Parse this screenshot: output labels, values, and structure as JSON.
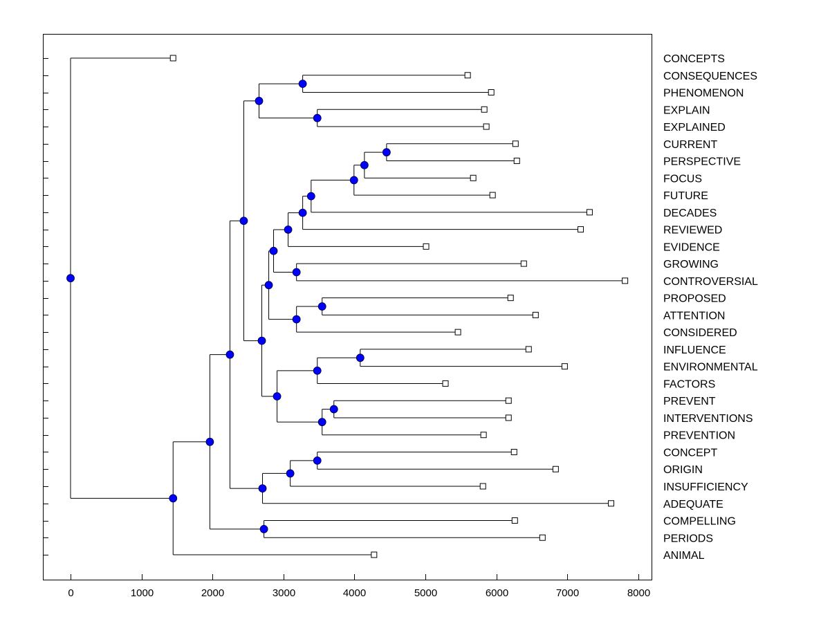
{
  "chart_data": {
    "type": "dendrogram",
    "title": "",
    "xlabel": "",
    "ylabel": "",
    "xlim": [
      -400,
      8200
    ],
    "xticks": [
      0,
      1000,
      2000,
      3000,
      4000,
      5000,
      6000,
      7000,
      8000
    ],
    "grid": false,
    "colors": {
      "node": "#0000ff",
      "line": "#000000",
      "leaf": "#ffffff"
    },
    "tree": {
      "h": 0,
      "children": [
        {
          "leaf": "CONCEPTS",
          "h": 1445
        },
        {
          "h": 1445,
          "children": [
            {
              "h": 1963,
              "children": [
                {
                  "h": 2246,
                  "children": [
                    {
                      "h": 2441,
                      "children": [
                        {
                          "h": 2656,
                          "children": [
                            {
                              "h": 3271,
                              "children": [
                                {
                                  "leaf": "CONSEQUENCES",
                                  "h": 5596
                                },
                                {
                                  "leaf": "PHENOMENON",
                                  "h": 5928
                                }
                              ]
                            },
                            {
                              "h": 3477,
                              "children": [
                                {
                                  "leaf": "EXPLAIN",
                                  "h": 5830
                                },
                                {
                                  "leaf": "EXPLAINED",
                                  "h": 5859
                                }
                              ]
                            }
                          ]
                        },
                        {
                          "h": 2695,
                          "children": [
                            {
                              "h": 2793,
                              "children": [
                                {
                                  "h": 2861,
                                  "children": [
                                    {
                                      "h": 3066,
                                      "children": [
                                        {
                                          "h": 3271,
                                          "children": [
                                            {
                                              "h": 3390,
                                              "children": [
                                                {
                                                  "h": 3994,
                                                  "children": [
                                                    {
                                                      "h": 4141,
                                                      "children": [
                                                        {
                                                          "h": 4453,
                                                          "children": [
                                                            {
                                                              "leaf": "CURRENT",
                                                              "h": 6270
                                                            },
                                                            {
                                                              "leaf": "PERSPECTIVE",
                                                              "h": 6289
                                                            }
                                                          ]
                                                        },
                                                        {
                                                          "leaf": "FOCUS",
                                                          "h": 5674
                                                        }
                                                      ]
                                                    },
                                                    {
                                                      "leaf": "FUTURE",
                                                      "h": 5947
                                                    }
                                                  ]
                                                },
                                                {
                                                  "leaf": "DECADES",
                                                  "h": 7314
                                                }
                                              ]
                                            },
                                            {
                                              "leaf": "REVIEWED",
                                              "h": 7188
                                            }
                                          ]
                                        },
                                        {
                                          "leaf": "EVIDENCE",
                                          "h": 5010
                                        }
                                      ]
                                    },
                                    {
                                      "h": 3184,
                                      "children": [
                                        {
                                          "leaf": "GROWING",
                                          "h": 6387
                                        },
                                        {
                                          "leaf": "CONTROVERSIAL",
                                          "h": 7813
                                        }
                                      ]
                                    }
                                  ]
                                },
                                {
                                  "h": 3184,
                                  "children": [
                                    {
                                      "h": 3545,
                                      "children": [
                                        {
                                          "leaf": "PROPOSED",
                                          "h": 6201
                                        },
                                        {
                                          "leaf": "ATTENTION",
                                          "h": 6553
                                        }
                                      ]
                                    },
                                    {
                                      "leaf": "CONSIDERED",
                                      "h": 5459
                                    }
                                  ]
                                }
                              ]
                            },
                            {
                              "h": 2910,
                              "children": [
                                {
                                  "h": 3477,
                                  "children": [
                                    {
                                      "h": 4082,
                                      "children": [
                                        {
                                          "leaf": "INFLUENCE",
                                          "h": 6455
                                        },
                                        {
                                          "leaf": "ENVIRONMENTAL",
                                          "h": 6963
                                        }
                                      ]
                                    },
                                    {
                                      "leaf": "FACTORS",
                                      "h": 5283
                                    }
                                  ]
                                },
                                {
                                  "h": 3545,
                                  "children": [
                                    {
                                      "h": 3711,
                                      "children": [
                                        {
                                          "leaf": "PREVENT",
                                          "h": 6172
                                        },
                                        {
                                          "leaf": "INTERVENTIONS",
                                          "h": 6172
                                        }
                                      ]
                                    },
                                    {
                                      "leaf": "PREVENTION",
                                      "h": 5820
                                    }
                                  ]
                                }
                              ]
                            }
                          ]
                        }
                      ]
                    },
                    {
                      "h": 2705,
                      "children": [
                        {
                          "h": 3096,
                          "children": [
                            {
                              "h": 3477,
                              "children": [
                                {
                                  "leaf": "CONCEPT",
                                  "h": 6250
                                },
                                {
                                  "leaf": "ORIGIN",
                                  "h": 6836
                                }
                              ]
                            },
                            {
                              "leaf": "INSUFFICIENCY",
                              "h": 5811
                            }
                          ]
                        },
                        {
                          "leaf": "ADEQUATE",
                          "h": 7617
                        }
                      ]
                    }
                  ]
                },
                {
                  "h": 2725,
                  "children": [
                    {
                      "leaf": "COMPELLING",
                      "h": 6260
                    },
                    {
                      "leaf": "PERIODS",
                      "h": 6650
                    }
                  ]
                }
              ]
            },
            {
              "leaf": "ANIMAL",
              "h": 4277
            }
          ]
        }
      ]
    }
  }
}
